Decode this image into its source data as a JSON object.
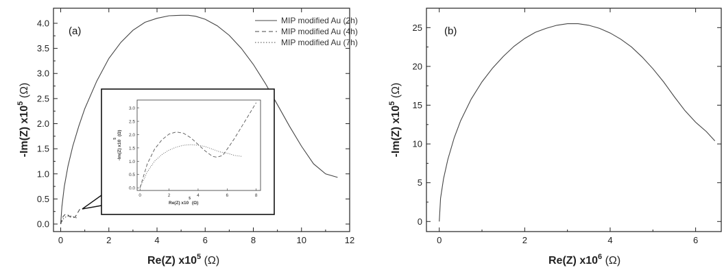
{
  "chart_data": [
    {
      "panel": "(a)",
      "type": "line",
      "xlabel": {
        "main": "Re(Z) x10",
        "exp": "5",
        "unit": "(Ω)"
      },
      "ylabel": {
        "main": "-Im(Z) x10",
        "exp": "5",
        "unit": "(Ω)"
      },
      "xlim": [
        -0.3,
        12
      ],
      "ylim": [
        -0.15,
        4.3
      ],
      "xticks": [
        0,
        2,
        4,
        6,
        8,
        10,
        12
      ],
      "yticks": [
        "0.0",
        "0.5",
        "1.0",
        "1.5",
        "2.0",
        "2.5",
        "3.0",
        "3.5",
        "4.0"
      ],
      "legend_position": "top-right",
      "series": [
        {
          "name": "MIP modified Au (2h)",
          "style": "solid",
          "x": [
            0.0,
            0.05,
            0.15,
            0.3,
            0.5,
            0.75,
            1.0,
            1.5,
            2.0,
            2.5,
            3.0,
            3.5,
            4.0,
            4.5,
            5.0,
            5.3,
            5.6,
            6.0,
            6.5,
            7.0,
            7.5,
            8.0,
            8.5,
            9.0,
            9.5,
            10.0,
            10.5,
            11.0,
            11.5
          ],
          "y": [
            0.0,
            0.35,
            0.75,
            1.15,
            1.55,
            1.95,
            2.3,
            2.85,
            3.3,
            3.62,
            3.86,
            4.02,
            4.1,
            4.15,
            4.16,
            4.16,
            4.14,
            4.08,
            3.95,
            3.76,
            3.5,
            3.18,
            2.8,
            2.38,
            1.95,
            1.55,
            1.2,
            1.0,
            0.93
          ]
        },
        {
          "name": "MIP modified Au (4h)",
          "style": "dashed",
          "x": [
            0.0,
            0.1,
            0.2,
            0.3,
            0.4,
            0.5,
            0.6,
            0.7,
            0.8
          ],
          "y": [
            0.0,
            0.15,
            0.2,
            0.18,
            0.14,
            0.12,
            0.14,
            0.22,
            0.3
          ]
        },
        {
          "name": "MIP modified Au (7h)",
          "style": "dotted",
          "x": [
            0.0,
            0.1,
            0.2,
            0.3,
            0.4,
            0.5,
            0.6,
            0.7
          ],
          "y": [
            0.0,
            0.1,
            0.14,
            0.16,
            0.16,
            0.15,
            0.13,
            0.12
          ]
        }
      ],
      "inset": {
        "ylabel": {
          "main": "-Im(Z) x10",
          "exp": "5",
          "unit": "(Ω)"
        },
        "xlabel": {
          "main": "Re(Z) x10",
          "exp": "5",
          "unit": "(Ω)"
        },
        "xlim": [
          -0.2,
          8.3
        ],
        "ylim": [
          -0.1,
          3.3
        ],
        "xticks": [
          0,
          2,
          4,
          6,
          8
        ],
        "yticks": [
          "0.0",
          "0.5",
          "1.0",
          "1.5",
          "2.0",
          "2.5",
          "3.0"
        ],
        "series": [
          {
            "style": "dashed",
            "x": [
              0.0,
              0.5,
              1.0,
              1.5,
              2.0,
              2.5,
              3.0,
              3.5,
              4.0,
              4.5,
              5.0,
              5.3,
              5.7,
              6.0,
              6.5,
              7.0,
              7.5,
              8.0
            ],
            "y": [
              0.0,
              0.9,
              1.45,
              1.8,
              2.02,
              2.1,
              2.05,
              1.88,
              1.63,
              1.38,
              1.18,
              1.15,
              1.22,
              1.45,
              1.85,
              2.3,
              2.75,
              3.2
            ]
          },
          {
            "style": "dotted",
            "x": [
              0.0,
              0.5,
              1.0,
              1.5,
              2.0,
              2.5,
              3.0,
              3.5,
              4.0,
              4.5,
              5.0,
              5.5,
              6.0,
              6.5,
              7.0
            ],
            "y": [
              0.0,
              0.6,
              1.0,
              1.25,
              1.42,
              1.53,
              1.6,
              1.62,
              1.6,
              1.55,
              1.45,
              1.35,
              1.3,
              1.22,
              1.18
            ]
          }
        ]
      }
    },
    {
      "panel": "(b)",
      "type": "line",
      "xlabel": {
        "main": "Re(Z) x10",
        "exp": "6",
        "unit": "(Ω)"
      },
      "ylabel": {
        "main": "-Im(Z) x10",
        "exp": "5",
        "unit": "(Ω)"
      },
      "xlim": [
        -0.3,
        6.6
      ],
      "ylim": [
        -1.3,
        27.5
      ],
      "xticks": [
        0,
        2,
        4,
        6
      ],
      "yticks": [
        "0",
        "5",
        "10",
        "15",
        "20",
        "25"
      ],
      "series": [
        {
          "style": "solid",
          "x": [
            0.0,
            0.03,
            0.1,
            0.2,
            0.35,
            0.5,
            0.75,
            1.0,
            1.25,
            1.5,
            1.75,
            2.0,
            2.25,
            2.5,
            2.75,
            3.0,
            3.25,
            3.5,
            3.75,
            4.0,
            4.25,
            4.5,
            4.75,
            5.0,
            5.25,
            5.5,
            5.75,
            6.0,
            6.25,
            6.45
          ],
          "y": [
            0.0,
            3.0,
            5.5,
            8.0,
            10.8,
            13.0,
            15.8,
            18.0,
            19.8,
            21.3,
            22.6,
            23.6,
            24.4,
            24.9,
            25.3,
            25.5,
            25.5,
            25.3,
            24.9,
            24.3,
            23.5,
            22.5,
            21.2,
            19.7,
            18.0,
            16.1,
            14.3,
            12.8,
            11.6,
            10.4
          ]
        }
      ]
    }
  ]
}
